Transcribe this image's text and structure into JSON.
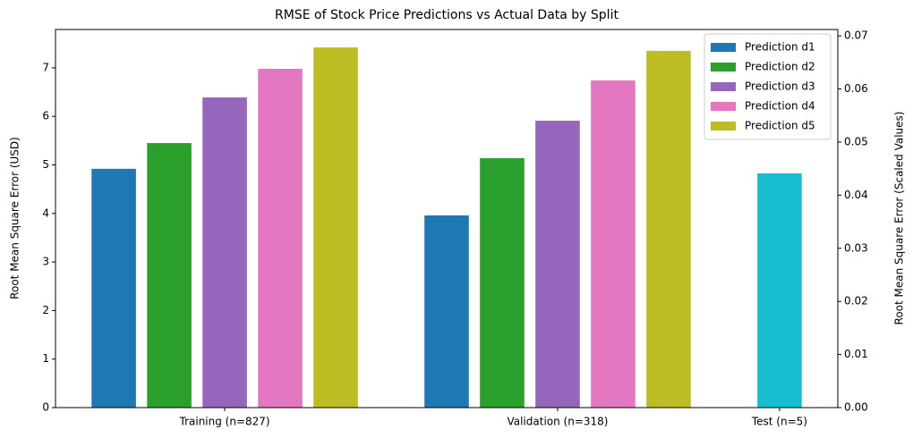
{
  "chart_data": {
    "type": "bar",
    "title": "RMSE of Stock Price Predictions vs Actual Data by Split",
    "ylabel": "Root Mean Square Error (USD)",
    "y2label": "Root Mean Square Error (Scaled Values)",
    "categories": [
      "Training (n=827)",
      "Validation (n=318)",
      "Test (n=5)"
    ],
    "series": [
      {
        "name": "Prediction d1",
        "color": "#1f77b4",
        "values": [
          4.92,
          3.96,
          null
        ]
      },
      {
        "name": "Prediction d2",
        "color": "#2ca02c",
        "values": [
          5.45,
          5.14,
          null
        ]
      },
      {
        "name": "Prediction d3",
        "color": "#9467bd",
        "values": [
          6.39,
          5.91,
          null
        ]
      },
      {
        "name": "Prediction d4",
        "color": "#e377c2",
        "values": [
          6.98,
          6.74,
          null
        ]
      },
      {
        "name": "Prediction d5",
        "color": "#bcbd22",
        "values": [
          7.42,
          7.35,
          null
        ]
      },
      {
        "color": "#17becf",
        "axis": "y2",
        "values": [
          null,
          null,
          0.0441
        ]
      }
    ],
    "ylim": [
      0,
      7.79
    ],
    "yticks": [
      0,
      1,
      2,
      3,
      4,
      5,
      6,
      7
    ],
    "y2lim": [
      0,
      0.0712
    ],
    "y2ticks": [
      {
        "value": 0,
        "label": "0.00"
      },
      0.01,
      0.02,
      0.03,
      0.04,
      0.05,
      0.06,
      0.07
    ],
    "legend": "upper right"
  }
}
